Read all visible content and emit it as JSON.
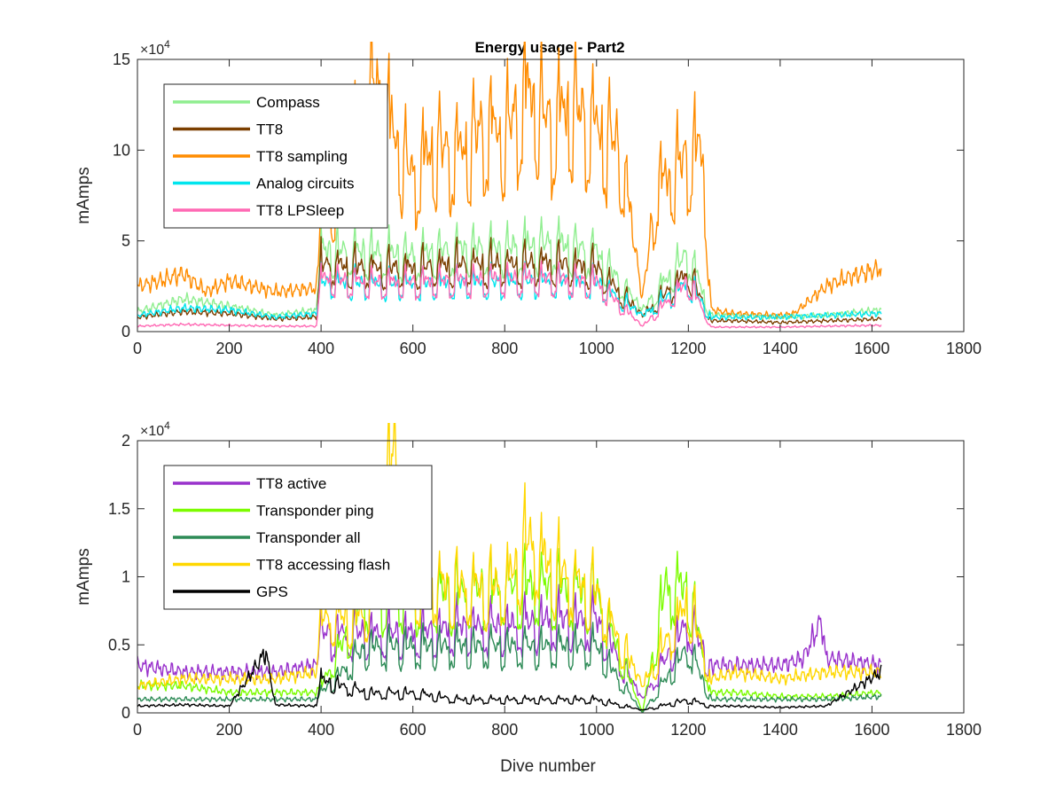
{
  "figure": {
    "title": "Energy usage - Part2"
  },
  "chart_data": [
    {
      "type": "line",
      "title": "Energy usage - Part2",
      "xlabel": "",
      "ylabel": "mAmps",
      "y_exponent": "×10",
      "y_exponent_power": "4",
      "xlim": [
        0,
        1800
      ],
      "ylim": [
        0,
        150000
      ],
      "xticks": [
        0,
        200,
        400,
        600,
        800,
        1000,
        1200,
        1400,
        1600,
        1800
      ],
      "xtick_labels": [
        "0",
        "200",
        "400",
        "600",
        "800",
        "1000",
        "1200",
        "1400",
        "1600",
        "1800"
      ],
      "yticks": [
        0,
        50000,
        100000,
        150000
      ],
      "ytick_labels": [
        "0",
        "5",
        "10",
        "15"
      ],
      "grid": false,
      "legend_position": "top-left",
      "series": [
        {
          "name": "Compass",
          "color": "#90ee90",
          "base": 15000,
          "amp": 10000,
          "phase": 0.0,
          "x": [
            0,
            100,
            200,
            300,
            390,
            400,
            500,
            600,
            700,
            800,
            900,
            1000,
            1100,
            1200,
            1250,
            1300,
            1400,
            1500,
            1620
          ],
          "y": [
            11000,
            18000,
            14000,
            9000,
            12000,
            46000,
            45000,
            43000,
            47000,
            47000,
            50000,
            45000,
            12000,
            45000,
            9000,
            9000,
            8000,
            9000,
            12000
          ]
        },
        {
          "name": "TT8",
          "color": "#7b3f00",
          "base": 12000,
          "amp": 9000,
          "phase": 1.0,
          "x": [
            0,
            100,
            200,
            300,
            390,
            400,
            500,
            600,
            700,
            800,
            900,
            1000,
            1100,
            1200,
            1250,
            1300,
            1400,
            1500,
            1620
          ],
          "y": [
            8000,
            11000,
            10000,
            7000,
            8000,
            38000,
            36000,
            36000,
            38000,
            38000,
            39000,
            36000,
            9000,
            34000,
            6000,
            6000,
            5000,
            6000,
            7000
          ]
        },
        {
          "name": "TT8 sampling",
          "color": "#ff8c00",
          "base": 40000,
          "amp": 28000,
          "phase": 2.0,
          "x": [
            0,
            50,
            100,
            150,
            200,
            250,
            300,
            390,
            400,
            450,
            515,
            560,
            600,
            650,
            700,
            750,
            800,
            850,
            900,
            950,
            1000,
            1050,
            1100,
            1130,
            1200,
            1230,
            1250,
            1300,
            1400,
            1430,
            1500,
            1550,
            1620
          ],
          "y": [
            25000,
            28000,
            32000,
            22000,
            28000,
            25000,
            22000,
            24000,
            60000,
            90000,
            140000,
            110000,
            88000,
            105000,
            100000,
            115000,
            112000,
            136000,
            118000,
            128000,
            114000,
            106000,
            18000,
            80000,
            100000,
            103000,
            12000,
            10000,
            9000,
            10000,
            25000,
            30000,
            35000
          ]
        },
        {
          "name": "Analog circuits",
          "color": "#00e5ee",
          "base": 14000,
          "amp": 10000,
          "phase": 3.0,
          "x": [
            0,
            100,
            200,
            300,
            390,
            400,
            500,
            600,
            700,
            800,
            900,
            1000,
            1100,
            1200,
            1250,
            1300,
            1400,
            1500,
            1620
          ],
          "y": [
            9000,
            13000,
            12000,
            8000,
            10000,
            28000,
            27000,
            27000,
            28000,
            28000,
            29000,
            28000,
            9000,
            28000,
            8000,
            8000,
            8000,
            9000,
            10000
          ]
        },
        {
          "name": "TT8 LPSleep",
          "color": "#ff69b4",
          "base": 16000,
          "amp": 13000,
          "phase": 4.0,
          "x": [
            0,
            100,
            200,
            300,
            390,
            400,
            500,
            600,
            700,
            800,
            900,
            1000,
            1100,
            1200,
            1250,
            1300,
            1400,
            1500,
            1620
          ],
          "y": [
            3000,
            4000,
            3500,
            3000,
            3000,
            30000,
            28000,
            28000,
            29000,
            30000,
            30000,
            28000,
            3000,
            29000,
            2500,
            2500,
            2500,
            3000,
            3500
          ]
        }
      ]
    },
    {
      "type": "line",
      "title": "",
      "xlabel": "Dive number",
      "ylabel": "mAmps",
      "y_exponent": "×10",
      "y_exponent_power": "4",
      "xlim": [
        0,
        1800
      ],
      "ylim": [
        0,
        20000
      ],
      "xticks": [
        0,
        200,
        400,
        600,
        800,
        1000,
        1200,
        1400,
        1600,
        1800
      ],
      "xtick_labels": [
        "0",
        "200",
        "400",
        "600",
        "800",
        "1000",
        "1200",
        "1400",
        "1600",
        "1800"
      ],
      "yticks": [
        0,
        5000,
        10000,
        15000,
        20000
      ],
      "ytick_labels": [
        "0",
        "0.5",
        "1",
        "1.5",
        "2"
      ],
      "grid": false,
      "legend_position": "top-left",
      "series": [
        {
          "name": "TT8 active",
          "color": "#9932cc",
          "base": 2000,
          "amp": 1600,
          "phase": 0.5,
          "x": [
            0,
            100,
            200,
            300,
            390,
            400,
            500,
            600,
            700,
            800,
            900,
            1000,
            1100,
            1200,
            1250,
            1300,
            1400,
            1450,
            1490,
            1500,
            1620
          ],
          "y": [
            3500,
            3000,
            3000,
            3000,
            3500,
            6000,
            6000,
            6000,
            6500,
            6500,
            7000,
            7000,
            1000,
            7000,
            3500,
            3500,
            3500,
            4000,
            6800,
            4000,
            3500
          ]
        },
        {
          "name": "Transponder ping",
          "color": "#7cfc00",
          "base": 1500,
          "amp": 8000,
          "phase": 1.5,
          "x": [
            0,
            100,
            200,
            300,
            390,
            400,
            500,
            600,
            700,
            800,
            900,
            1000,
            1100,
            1150,
            1200,
            1250,
            1300,
            1400,
            1500,
            1620
          ],
          "y": [
            2000,
            2000,
            1500,
            1500,
            1500,
            2000,
            9000,
            9000,
            9000,
            9500,
            9500,
            9000,
            0,
            9500,
            9500,
            1500,
            1500,
            1200,
            1200,
            1500
          ]
        },
        {
          "name": "Transponder all",
          "color": "#2e8b57",
          "base": 1200,
          "amp": 4000,
          "phase": 2.5,
          "x": [
            0,
            100,
            200,
            300,
            390,
            400,
            500,
            600,
            700,
            800,
            900,
            1000,
            1100,
            1200,
            1250,
            1300,
            1400,
            1500,
            1620
          ],
          "y": [
            1000,
            1000,
            1000,
            1000,
            1000,
            1500,
            5000,
            5000,
            5000,
            5000,
            5000,
            5000,
            0,
            5000,
            1000,
            1000,
            1000,
            1000,
            1200
          ]
        },
        {
          "name": "TT8 accessing flash",
          "color": "#ffd700",
          "base": 3000,
          "amp": 5000,
          "phase": 3.5,
          "x": [
            0,
            100,
            200,
            300,
            390,
            400,
            500,
            560,
            600,
            700,
            800,
            850,
            900,
            1000,
            1100,
            1200,
            1250,
            1300,
            1400,
            1500,
            1620
          ],
          "y": [
            2000,
            2500,
            2500,
            2500,
            3000,
            7000,
            7500,
            20000,
            10000,
            9500,
            9500,
            13000,
            11000,
            9000,
            2000,
            8500,
            2500,
            3000,
            2500,
            3000,
            3000
          ]
        },
        {
          "name": "GPS",
          "color": "#000000",
          "base": 500,
          "amp": 1500,
          "phase": 4.5,
          "x": [
            0,
            100,
            200,
            280,
            300,
            390,
            400,
            500,
            600,
            700,
            800,
            900,
            1000,
            1100,
            1200,
            1250,
            1300,
            1400,
            1500,
            1620
          ],
          "y": [
            500,
            600,
            500,
            4500,
            600,
            500,
            2500,
            1500,
            1500,
            1000,
            1000,
            1000,
            1000,
            200,
            1000,
            500,
            500,
            400,
            500,
            3000
          ]
        }
      ]
    }
  ]
}
